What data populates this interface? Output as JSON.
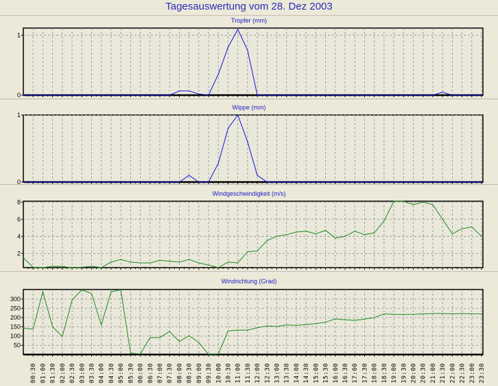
{
  "title": "Tagesauswertung vom 28. Dez 2003",
  "x_tick_labels": [
    "00:30",
    "01:00",
    "01:30",
    "02:00",
    "02:30",
    "03:00",
    "03:30",
    "04:00",
    "04:30",
    "05:00",
    "05:30",
    "06:00",
    "06:30",
    "07:00",
    "07:30",
    "08:00",
    "08:30",
    "09:00",
    "09:30",
    "10:00",
    "10:30",
    "11:00",
    "11:30",
    "12:00",
    "12:30",
    "13:00",
    "13:30",
    "14:00",
    "14:30",
    "15:00",
    "15:30",
    "16:00",
    "16:30",
    "17:00",
    "17:30",
    "18:00",
    "18:30",
    "19:00",
    "19:30",
    "20:00",
    "20:30",
    "21:00",
    "21:30",
    "22:00",
    "22:30",
    "23:00",
    "23:30"
  ],
  "colors": {
    "blue": "#1010E0",
    "green": "#1E8A1E",
    "grid": "#8A8A8A",
    "title": "#2020C8"
  },
  "chart_data": [
    {
      "type": "line",
      "title": "Tropfer (mm)",
      "color": "blue",
      "ylim": [
        0,
        1.12
      ],
      "yticks": [
        0,
        1
      ],
      "ytick_labels": [
        "0",
        "1"
      ],
      "grid": true,
      "values": [
        0,
        0,
        0,
        0,
        0,
        0,
        0,
        0,
        0,
        0,
        0,
        0,
        0,
        0,
        0,
        0,
        0.07,
        0.07,
        0.02,
        0,
        0.35,
        0.8,
        1.1,
        0.75,
        0,
        0,
        0,
        0,
        0,
        0,
        0,
        0,
        0,
        0,
        0,
        0,
        0,
        0,
        0,
        0,
        0,
        0,
        0,
        0.05,
        0,
        0,
        0,
        0
      ]
    },
    {
      "type": "line",
      "title": "Wippe (mm)",
      "color": "blue",
      "ylim": [
        0,
        1
      ],
      "yticks": [
        0,
        1
      ],
      "ytick_labels": [
        "0",
        "1"
      ],
      "grid": true,
      "values": [
        0,
        0,
        0,
        0,
        0,
        0,
        0,
        0,
        0,
        0,
        0,
        0,
        0,
        0,
        0,
        0,
        0,
        0.1,
        0,
        0,
        0.28,
        0.8,
        1.0,
        0.6,
        0.1,
        0,
        0,
        0,
        0,
        0,
        0,
        0,
        0,
        0,
        0,
        0,
        0,
        0,
        0,
        0,
        0,
        0,
        0,
        0,
        0,
        0,
        0,
        0
      ]
    },
    {
      "type": "line",
      "title": "Windgeschwindigkeit (m/s)",
      "color": "green",
      "ylim": [
        0.35,
        8.1
      ],
      "yticks": [
        2,
        4,
        6,
        8
      ],
      "ytick_labels": [
        "2",
        "4",
        "6",
        "8"
      ],
      "grid": true,
      "values": [
        1.5,
        0.4,
        0.35,
        0.5,
        0.5,
        0.3,
        0.4,
        0.5,
        0.35,
        1.0,
        1.3,
        1.0,
        0.9,
        0.9,
        1.2,
        1.1,
        1.0,
        1.3,
        0.9,
        0.65,
        0.35,
        1.0,
        0.9,
        2.2,
        2.3,
        3.5,
        4.0,
        4.2,
        4.5,
        4.6,
        4.3,
        4.7,
        3.8,
        4.0,
        4.6,
        4.2,
        4.4,
        5.8,
        8.1,
        8.1,
        7.7,
        8.0,
        7.7,
        6.0,
        4.3,
        4.9,
        5.1,
        4.0
      ]
    },
    {
      "type": "line",
      "title": "Windrichtung (Grad)",
      "color": "green",
      "ylim": [
        0,
        352
      ],
      "yticks": [
        50,
        100,
        150,
        200,
        250,
        300
      ],
      "ytick_labels": [
        "50",
        "100",
        "150",
        "200",
        "250",
        "300"
      ],
      "grid": true,
      "values": [
        143,
        137,
        340,
        150,
        97,
        295,
        350,
        330,
        160,
        340,
        350,
        8,
        3,
        92,
        92,
        125,
        70,
        102,
        65,
        0,
        3,
        128,
        132,
        132,
        145,
        155,
        152,
        160,
        158,
        162,
        167,
        175,
        193,
        188,
        185,
        192,
        200,
        220,
        217,
        217,
        218,
        220,
        222,
        222,
        220,
        222,
        220,
        220
      ]
    }
  ]
}
